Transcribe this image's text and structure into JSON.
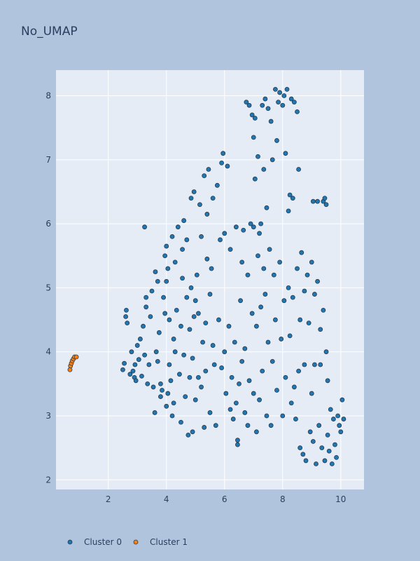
{
  "chart_data": {
    "type": "scatter",
    "title": "No_UMAP",
    "xlabel": "",
    "ylabel": "",
    "xlim": [
      0.2,
      10.8
    ],
    "ylim": [
      1.85,
      8.4
    ],
    "x_ticks": [
      2,
      4,
      6,
      8,
      10
    ],
    "y_ticks": [
      2,
      3,
      4,
      5,
      6,
      7,
      8
    ],
    "x_tick_labels": [
      "2",
      "4",
      "6",
      "8",
      "10"
    ],
    "y_tick_labels": [
      "2",
      "3",
      "4",
      "5",
      "6",
      "7",
      "8"
    ],
    "grid": true,
    "legend_position": "bottom-left",
    "colors": {
      "Cluster 0": "#1f77b4",
      "Cluster 1": "#ff7f0e",
      "marker_edge": "#2a3a4a",
      "paper_bg": "#b0c4de",
      "plot_bg": "#e5ecf6",
      "grid": "#ffffff",
      "text": "#2a3f5f"
    },
    "series": [
      {
        "name": "Cluster 0",
        "points": [
          [
            2.5,
            3.72
          ],
          [
            2.55,
            3.82
          ],
          [
            2.6,
            4.55
          ],
          [
            2.62,
            4.65
          ],
          [
            2.65,
            4.45
          ],
          [
            2.75,
            3.65
          ],
          [
            2.8,
            4.0
          ],
          [
            2.85,
            3.7
          ],
          [
            2.9,
            3.6
          ],
          [
            2.92,
            3.8
          ],
          [
            2.95,
            3.55
          ],
          [
            3.0,
            4.1
          ],
          [
            3.05,
            3.88
          ],
          [
            3.1,
            4.2
          ],
          [
            3.15,
            3.62
          ],
          [
            3.2,
            4.4
          ],
          [
            3.25,
            3.95
          ],
          [
            3.25,
            5.95
          ],
          [
            3.3,
            4.7
          ],
          [
            3.3,
            4.85
          ],
          [
            3.35,
            3.5
          ],
          [
            3.4,
            3.8
          ],
          [
            3.45,
            4.55
          ],
          [
            3.5,
            4.95
          ],
          [
            3.55,
            3.45
          ],
          [
            3.6,
            3.05
          ],
          [
            3.62,
            5.25
          ],
          [
            3.65,
            4.0
          ],
          [
            3.7,
            3.85
          ],
          [
            3.7,
            5.1
          ],
          [
            3.75,
            4.3
          ],
          [
            3.8,
            3.5
          ],
          [
            3.8,
            3.3
          ],
          [
            3.85,
            3.4
          ],
          [
            3.9,
            4.85
          ],
          [
            3.95,
            4.6
          ],
          [
            3.95,
            5.5
          ],
          [
            4.0,
            5.1
          ],
          [
            4.0,
            5.65
          ],
          [
            4.0,
            3.15
          ],
          [
            4.05,
            3.35
          ],
          [
            4.05,
            5.3
          ],
          [
            4.1,
            3.8
          ],
          [
            4.1,
            4.5
          ],
          [
            4.15,
            3.55
          ],
          [
            4.2,
            3.0
          ],
          [
            4.2,
            5.8
          ],
          [
            4.25,
            3.2
          ],
          [
            4.25,
            4.2
          ],
          [
            4.3,
            4.0
          ],
          [
            4.3,
            5.4
          ],
          [
            4.35,
            4.65
          ],
          [
            4.4,
            5.95
          ],
          [
            4.45,
            3.65
          ],
          [
            4.5,
            2.9
          ],
          [
            4.5,
            4.4
          ],
          [
            4.55,
            5.15
          ],
          [
            4.55,
            5.6
          ],
          [
            4.6,
            3.95
          ],
          [
            4.6,
            6.05
          ],
          [
            4.65,
            3.3
          ],
          [
            4.7,
            4.85
          ],
          [
            4.7,
            5.75
          ],
          [
            4.75,
            2.7
          ],
          [
            4.8,
            3.6
          ],
          [
            4.8,
            4.35
          ],
          [
            4.85,
            6.4
          ],
          [
            4.85,
            5.0
          ],
          [
            4.9,
            2.75
          ],
          [
            4.9,
            3.9
          ],
          [
            4.95,
            4.55
          ],
          [
            4.95,
            6.5
          ],
          [
            5.0,
            3.25
          ],
          [
            5.0,
            4.8
          ],
          [
            5.05,
            5.2
          ],
          [
            5.1,
            3.6
          ],
          [
            5.1,
            4.6
          ],
          [
            5.15,
            6.3
          ],
          [
            5.2,
            3.45
          ],
          [
            5.2,
            5.8
          ],
          [
            5.25,
            4.15
          ],
          [
            5.3,
            2.82
          ],
          [
            5.3,
            6.75
          ],
          [
            5.35,
            3.7
          ],
          [
            5.35,
            4.45
          ],
          [
            5.4,
            5.45
          ],
          [
            5.4,
            6.15
          ],
          [
            5.45,
            6.85
          ],
          [
            5.5,
            3.05
          ],
          [
            5.5,
            4.9
          ],
          [
            5.55,
            5.3
          ],
          [
            5.6,
            4.1
          ],
          [
            5.6,
            6.4
          ],
          [
            5.65,
            3.8
          ],
          [
            5.7,
            2.85
          ],
          [
            5.75,
            6.6
          ],
          [
            5.8,
            4.5
          ],
          [
            5.85,
            5.75
          ],
          [
            5.9,
            3.75
          ],
          [
            5.9,
            6.95
          ],
          [
            5.95,
            7.1
          ],
          [
            6.0,
            4.0
          ],
          [
            6.0,
            5.85
          ],
          [
            6.05,
            3.35
          ],
          [
            6.1,
            6.9
          ],
          [
            6.15,
            4.4
          ],
          [
            6.2,
            3.1
          ],
          [
            6.2,
            5.6
          ],
          [
            6.25,
            3.6
          ],
          [
            6.3,
            2.95
          ],
          [
            6.35,
            4.15
          ],
          [
            6.4,
            3.2
          ],
          [
            6.4,
            5.95
          ],
          [
            6.45,
            2.55
          ],
          [
            6.45,
            2.62
          ],
          [
            6.5,
            3.5
          ],
          [
            6.55,
            4.8
          ],
          [
            6.6,
            3.85
          ],
          [
            6.6,
            5.4
          ],
          [
            6.65,
            5.9
          ],
          [
            6.7,
            3.05
          ],
          [
            6.7,
            4.05
          ],
          [
            6.75,
            7.9
          ],
          [
            6.8,
            2.85
          ],
          [
            6.8,
            5.2
          ],
          [
            6.85,
            3.55
          ],
          [
            6.85,
            7.85
          ],
          [
            6.9,
            6.0
          ],
          [
            6.95,
            4.6
          ],
          [
            6.95,
            7.7
          ],
          [
            7.0,
            3.35
          ],
          [
            7.0,
            5.95
          ],
          [
            7.0,
            7.35
          ],
          [
            7.05,
            6.7
          ],
          [
            7.05,
            7.65
          ],
          [
            7.1,
            4.4
          ],
          [
            7.1,
            2.75
          ],
          [
            7.15,
            5.5
          ],
          [
            7.15,
            7.05
          ],
          [
            7.2,
            3.25
          ],
          [
            7.2,
            5.85
          ],
          [
            7.25,
            6.0
          ],
          [
            7.25,
            4.7
          ],
          [
            7.3,
            7.85
          ],
          [
            7.3,
            3.7
          ],
          [
            7.35,
            6.85
          ],
          [
            7.35,
            5.3
          ],
          [
            7.4,
            7.95
          ],
          [
            7.4,
            4.9
          ],
          [
            7.45,
            3.0
          ],
          [
            7.45,
            6.25
          ],
          [
            7.5,
            7.8
          ],
          [
            7.5,
            4.15
          ],
          [
            7.55,
            5.6
          ],
          [
            7.6,
            7.6
          ],
          [
            7.6,
            2.85
          ],
          [
            7.65,
            3.85
          ],
          [
            7.65,
            7.0
          ],
          [
            7.7,
            5.2
          ],
          [
            7.75,
            8.1
          ],
          [
            7.75,
            4.5
          ],
          [
            7.8,
            7.3
          ],
          [
            7.8,
            3.4
          ],
          [
            7.85,
            7.9
          ],
          [
            7.9,
            8.05
          ],
          [
            7.9,
            5.4
          ],
          [
            7.95,
            4.2
          ],
          [
            8.0,
            7.85
          ],
          [
            8.0,
            3.0
          ],
          [
            8.05,
            8.0
          ],
          [
            8.05,
            4.8
          ],
          [
            8.1,
            7.1
          ],
          [
            8.1,
            3.6
          ],
          [
            8.15,
            8.1
          ],
          [
            8.2,
            6.2
          ],
          [
            8.2,
            5.0
          ],
          [
            8.25,
            6.45
          ],
          [
            8.25,
            4.25
          ],
          [
            8.3,
            7.95
          ],
          [
            8.3,
            3.2
          ],
          [
            8.35,
            6.4
          ],
          [
            8.35,
            4.85
          ],
          [
            8.4,
            7.9
          ],
          [
            8.4,
            3.45
          ],
          [
            8.45,
            2.95
          ],
          [
            8.5,
            7.75
          ],
          [
            8.5,
            5.3
          ],
          [
            8.55,
            6.85
          ],
          [
            8.55,
            3.7
          ],
          [
            8.6,
            4.5
          ],
          [
            8.6,
            2.5
          ],
          [
            8.65,
            5.55
          ],
          [
            8.7,
            2.4
          ],
          [
            8.75,
            3.8
          ],
          [
            8.75,
            4.95
          ],
          [
            8.8,
            2.3
          ],
          [
            8.85,
            5.2
          ],
          [
            8.9,
            4.45
          ],
          [
            8.95,
            2.75
          ],
          [
            9.0,
            3.35
          ],
          [
            9.0,
            5.4
          ],
          [
            9.05,
            6.35
          ],
          [
            9.05,
            2.6
          ],
          [
            9.1,
            4.9
          ],
          [
            9.1,
            3.8
          ],
          [
            9.15,
            2.25
          ],
          [
            9.2,
            6.35
          ],
          [
            9.2,
            5.1
          ],
          [
            9.25,
            2.85
          ],
          [
            9.3,
            4.35
          ],
          [
            9.3,
            3.8
          ],
          [
            9.35,
            2.5
          ],
          [
            9.4,
            6.35
          ],
          [
            9.4,
            4.65
          ],
          [
            9.45,
            6.4
          ],
          [
            9.45,
            2.3
          ],
          [
            9.5,
            6.3
          ],
          [
            9.5,
            4.0
          ],
          [
            9.55,
            2.7
          ],
          [
            9.55,
            3.55
          ],
          [
            9.6,
            2.45
          ],
          [
            9.65,
            3.1
          ],
          [
            9.7,
            2.25
          ],
          [
            9.75,
            2.95
          ],
          [
            9.8,
            2.55
          ],
          [
            9.85,
            2.35
          ],
          [
            9.9,
            3.0
          ],
          [
            9.95,
            2.85
          ],
          [
            10.0,
            2.75
          ],
          [
            10.05,
            3.25
          ],
          [
            10.1,
            2.95
          ]
        ]
      },
      {
        "name": "Cluster 1",
        "points": [
          [
            0.68,
            3.72
          ],
          [
            0.7,
            3.78
          ],
          [
            0.73,
            3.82
          ],
          [
            0.76,
            3.86
          ],
          [
            0.8,
            3.89
          ],
          [
            0.84,
            3.92
          ],
          [
            0.9,
            3.92
          ]
        ]
      }
    ]
  },
  "legend": {
    "items": [
      {
        "label": "Cluster 0",
        "color": "#1f77b4"
      },
      {
        "label": "Cluster 1",
        "color": "#ff7f0e"
      }
    ]
  }
}
